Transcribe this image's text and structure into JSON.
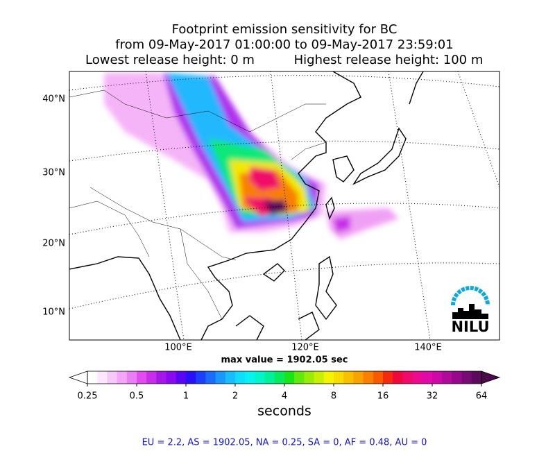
{
  "header": {
    "title": [
      "Footprint emission sensitivity for BC",
      "from 09-May-2017 01:00:00 to 09-May-2017 23:59:01"
    ],
    "release": {
      "lowest": "Lowest release height: 0 m",
      "highest": "Highest release height: 100 m"
    }
  },
  "map": {
    "lat_labels": [
      "40°N",
      "30°N",
      "20°N",
      "10°N"
    ],
    "lon_labels": [
      "100°E",
      "120°E",
      "140°E"
    ],
    "max_value": "max value = 1902.05 sec",
    "logo": "NILU"
  },
  "colorbar": {
    "scale": "log",
    "range": [
      0.25,
      64
    ],
    "ticks": [
      0.25,
      0.5,
      1,
      2,
      4,
      8,
      16,
      32,
      64
    ],
    "label": "seconds",
    "under_color": "#ffffff",
    "over_color": "#4a0a4a",
    "colors": [
      "#ffffff",
      "#fde6fe",
      "#f9c8fb",
      "#f3a6f7",
      "#ec7ef3",
      "#e04cef",
      "#c72ee8",
      "#a516e8",
      "#8a0aef",
      "#5a06f2",
      "#2a10f5",
      "#1a40fa",
      "#1a6cfc",
      "#1a96fd",
      "#19bcfe",
      "#10dcfd",
      "#05f2f0",
      "#02f5c8",
      "#02f09a",
      "#06ea5c",
      "#18e418",
      "#64e80c",
      "#98ec08",
      "#c8f006",
      "#f2f400",
      "#f8dc00",
      "#f9c000",
      "#faa200",
      "#fa8000",
      "#f85a00",
      "#f42a10",
      "#f0083c",
      "#f00a6a",
      "#ec0a90",
      "#e00aa8",
      "#cc0aa8",
      "#b00a9a",
      "#940a8a",
      "#780a74",
      "#5c0a5c"
    ]
  },
  "footer": "EU = 2.2,  AS = 1902.05,  NA = 0.25,  SA = 0,  AF = 0.48,  AU = 0"
}
